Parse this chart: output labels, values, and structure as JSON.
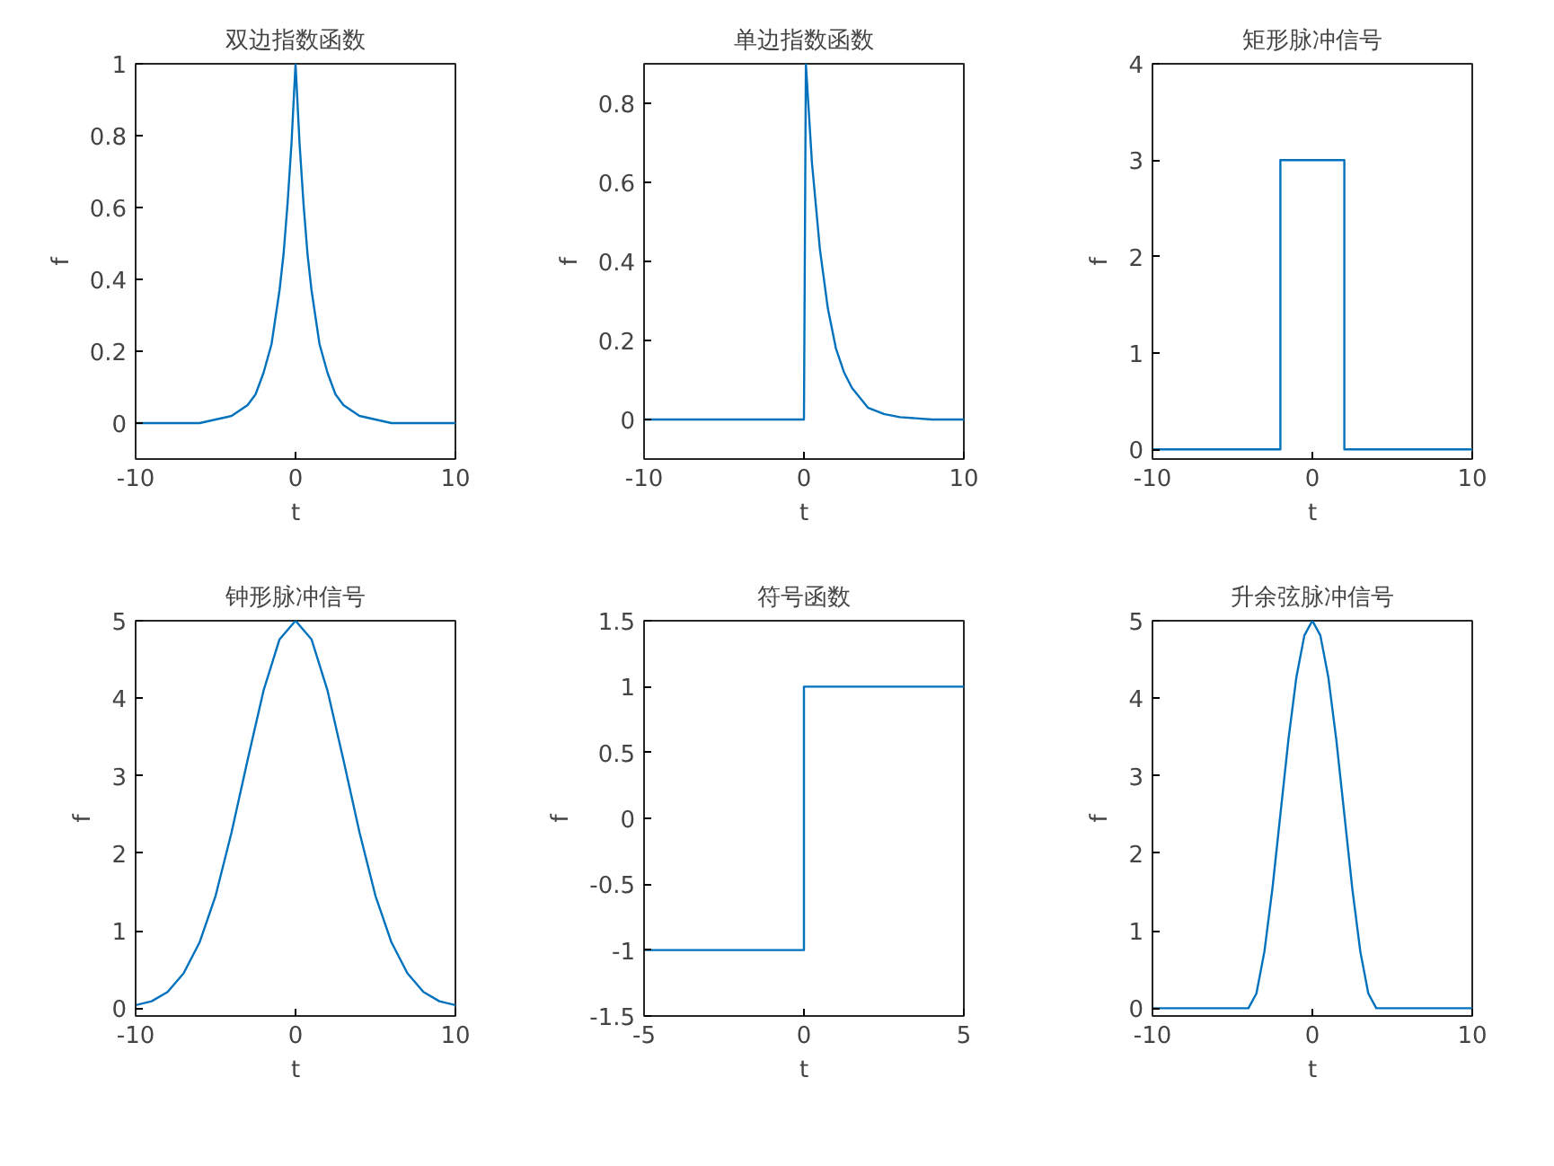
{
  "chart_data": [
    {
      "type": "line",
      "title": "双边指数函数",
      "xlabel": "t",
      "ylabel": "f",
      "color": "#0072bd",
      "xlim": [
        -10,
        10
      ],
      "ylim": [
        -0.1,
        1
      ],
      "xticks": [
        -10,
        0,
        10
      ],
      "yticks": [
        0,
        0.2,
        0.4,
        0.6,
        0.8,
        1
      ],
      "x": [
        -10,
        -8,
        -6,
        -5,
        -4,
        -3,
        -2.5,
        -2,
        -1.5,
        -1,
        -0.75,
        -0.5,
        -0.25,
        0,
        0.25,
        0.5,
        0.75,
        1,
        1.5,
        2,
        2.5,
        3,
        4,
        5,
        6,
        8,
        10
      ],
      "values": [
        0,
        0,
        0,
        0.01,
        0.02,
        0.05,
        0.08,
        0.14,
        0.22,
        0.37,
        0.47,
        0.61,
        0.78,
        1,
        0.78,
        0.61,
        0.47,
        0.37,
        0.22,
        0.14,
        0.08,
        0.05,
        0.02,
        0.01,
        0,
        0,
        0
      ]
    },
    {
      "type": "line",
      "title": "单边指数函数",
      "xlabel": "t",
      "ylabel": "f",
      "color": "#0072bd",
      "xlim": [
        -10,
        10
      ],
      "ylim": [
        -0.1,
        0.9
      ],
      "xticks": [
        -10,
        0,
        10
      ],
      "yticks": [
        0,
        0.2,
        0.4,
        0.6,
        0.8
      ],
      "x": [
        -10,
        0,
        0.12,
        0.5,
        1,
        1.5,
        2,
        2.5,
        3,
        4,
        5,
        6,
        8,
        10
      ],
      "values": [
        0,
        0,
        0.9,
        0.65,
        0.43,
        0.28,
        0.18,
        0.12,
        0.08,
        0.03,
        0.014,
        0.006,
        0,
        0
      ]
    },
    {
      "type": "line",
      "title": "矩形脉冲信号",
      "xlabel": "t",
      "ylabel": "f",
      "color": "#0072bd",
      "xlim": [
        -10,
        10
      ],
      "ylim": [
        -0.1,
        4
      ],
      "xticks": [
        -10,
        0,
        10
      ],
      "yticks": [
        0,
        1,
        2,
        3,
        4
      ],
      "x": [
        -10,
        -2,
        -2,
        2,
        2,
        10
      ],
      "values": [
        0,
        0,
        3,
        3,
        0,
        0
      ]
    },
    {
      "type": "line",
      "title": "钟形脉冲信号",
      "xlabel": "t",
      "ylabel": "f",
      "color": "#0072bd",
      "xlim": [
        -10,
        10
      ],
      "ylim": [
        -0.1,
        5
      ],
      "xticks": [
        -10,
        0,
        10
      ],
      "yticks": [
        0,
        1,
        2,
        3,
        4,
        5
      ],
      "x": [
        -10,
        -9,
        -8,
        -7,
        -6,
        -5,
        -4,
        -3,
        -2,
        -1,
        0,
        1,
        2,
        3,
        4,
        5,
        6,
        7,
        8,
        9,
        10
      ],
      "values": [
        0.04,
        0.09,
        0.21,
        0.45,
        0.85,
        1.45,
        2.27,
        3.2,
        4.1,
        4.76,
        5,
        4.76,
        4.1,
        3.2,
        2.27,
        1.45,
        0.85,
        0.45,
        0.21,
        0.09,
        0.04
      ]
    },
    {
      "type": "line",
      "title": "符号函数",
      "xlabel": "t",
      "ylabel": "f",
      "color": "#0072bd",
      "xlim": [
        -5,
        5
      ],
      "ylim": [
        -1.5,
        1.5
      ],
      "xticks": [
        -5,
        0,
        5
      ],
      "yticks": [
        -1.5,
        -1,
        -0.5,
        0,
        0.5,
        1,
        1.5
      ],
      "x": [
        -5,
        0,
        0,
        5
      ],
      "values": [
        -1,
        -1,
        1,
        1
      ]
    },
    {
      "type": "line",
      "title": "升余弦脉冲信号",
      "xlabel": "t",
      "ylabel": "f",
      "color": "#0072bd",
      "xlim": [
        -10,
        10
      ],
      "ylim": [
        -0.1,
        5
      ],
      "xticks": [
        -10,
        0,
        10
      ],
      "yticks": [
        0,
        1,
        2,
        3,
        4,
        5
      ],
      "x": [
        -10,
        -4,
        -3.5,
        -3,
        -2.5,
        -2,
        -1.5,
        -1,
        -0.5,
        0,
        0.5,
        1,
        1.5,
        2,
        2.5,
        3,
        3.5,
        4,
        10
      ],
      "values": [
        0,
        0,
        0.19,
        0.73,
        1.54,
        2.5,
        3.46,
        4.27,
        4.81,
        5,
        4.81,
        4.27,
        3.46,
        2.5,
        1.54,
        0.73,
        0.19,
        0,
        0
      ]
    }
  ]
}
